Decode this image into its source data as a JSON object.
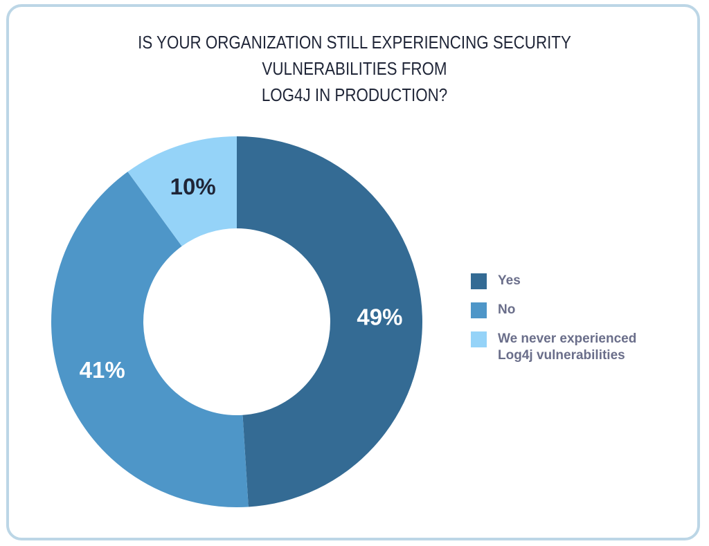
{
  "chart_data": {
    "type": "pie",
    "donut": true,
    "title": "IS YOUR ORGANIZATION STILL EXPERIENCING SECURITY VULNERABILITIES FROM LOG4J IN PRODUCTION?",
    "title_lines": [
      "IS YOUR ORGANIZATION STILL EXPERIENCING SECURITY VULNERABILITIES FROM",
      "LOG4J IN PRODUCTION?"
    ],
    "categories": [
      "Yes",
      "No",
      "We never experienced Log4j vulnerabilities"
    ],
    "values": [
      49,
      41,
      10
    ],
    "data_labels": [
      "49%",
      "41%",
      "10%"
    ],
    "colors": [
      "#346b94",
      "#4e96c8",
      "#95d3f8"
    ],
    "label_colors": [
      "#ffffff",
      "#ffffff",
      "#1f2537"
    ],
    "legend_position": "right"
  },
  "legend": {
    "items": [
      {
        "label": "Yes",
        "color": "#346b94"
      },
      {
        "label": "No",
        "color": "#4e96c8"
      },
      {
        "label": "We never experienced Log4j vulnerabilities",
        "color": "#95d3f8"
      }
    ]
  }
}
